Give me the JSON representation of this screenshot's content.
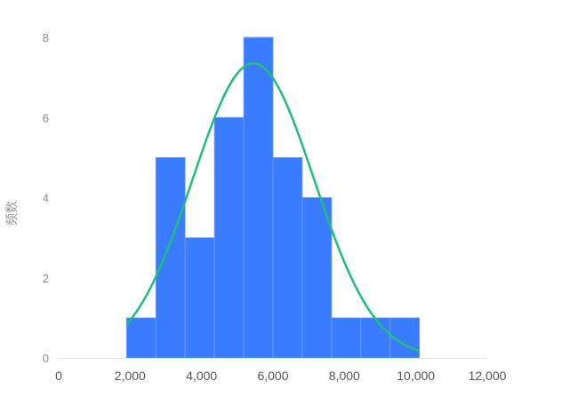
{
  "chart_data": {
    "type": "bar",
    "title": "",
    "xlabel": "",
    "ylabel": "频数",
    "xlim": [
      0,
      12000
    ],
    "ylim": [
      0,
      8
    ],
    "x_ticks": [
      "0",
      "2,000",
      "4,000",
      "6,000",
      "8,000",
      "10,000",
      "12,000"
    ],
    "y_ticks": [
      "0",
      "2",
      "4",
      "6",
      "8"
    ],
    "bins": [
      {
        "start": 1900,
        "end": 2720,
        "count": 1
      },
      {
        "start": 2720,
        "end": 3540,
        "count": 5
      },
      {
        "start": 3540,
        "end": 4360,
        "count": 3
      },
      {
        "start": 4360,
        "end": 5180,
        "count": 6
      },
      {
        "start": 5180,
        "end": 6000,
        "count": 8
      },
      {
        "start": 6000,
        "end": 6820,
        "count": 5
      },
      {
        "start": 6820,
        "end": 7640,
        "count": 4
      },
      {
        "start": 7640,
        "end": 8460,
        "count": 1
      },
      {
        "start": 8460,
        "end": 9280,
        "count": 1
      },
      {
        "start": 9280,
        "end": 10100,
        "count": 1
      }
    ],
    "normal_curve": {
      "mean": 5450,
      "std": 1700,
      "peak": 7.35,
      "x_range": [
        1900,
        10100
      ]
    },
    "colors": {
      "bar": "#3a7cff",
      "bar_edge": "#6f9fff",
      "curve": "#1fbf7a",
      "axis": "#e6e6e6"
    },
    "grid": false
  }
}
